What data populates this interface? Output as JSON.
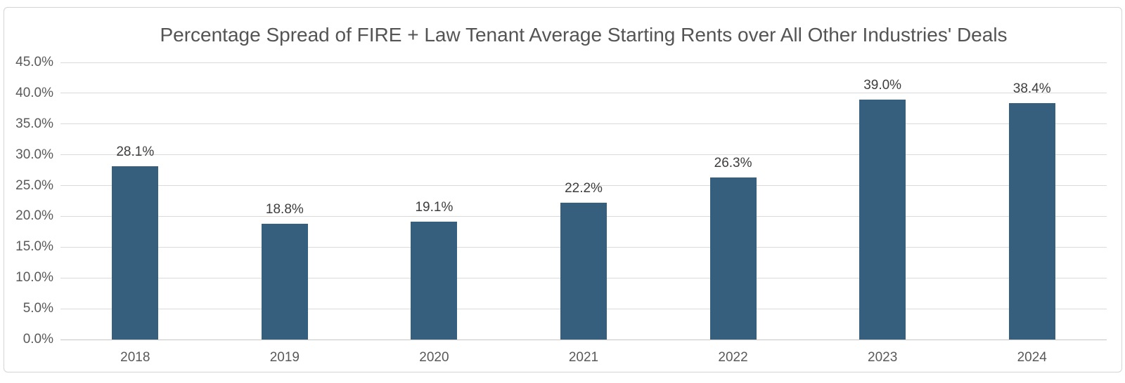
{
  "chart_data": {
    "type": "bar",
    "title": "Percentage Spread of FIRE + Law Tenant Average Starting Rents over All Other Industries' Deals",
    "categories": [
      "2018",
      "2019",
      "2020",
      "2021",
      "2022",
      "2023",
      "2024"
    ],
    "values": [
      28.1,
      18.8,
      19.1,
      22.2,
      26.3,
      39.0,
      38.4
    ],
    "data_labels": [
      "28.1%",
      "18.8%",
      "19.1%",
      "22.2%",
      "26.3%",
      "39.0%",
      "38.4%"
    ],
    "yticks": [
      0,
      5,
      10,
      15,
      20,
      25,
      30,
      35,
      40,
      45
    ],
    "ytick_labels": [
      "0.0%",
      "5.0%",
      "10.0%",
      "15.0%",
      "20.0%",
      "25.0%",
      "30.0%",
      "35.0%",
      "40.0%",
      "45.0%"
    ],
    "ylim": [
      0,
      45
    ],
    "xlabel": "",
    "ylabel": "",
    "grid": true,
    "legend": false,
    "colors": {
      "bar": "#365F7E",
      "gridline": "#dadada",
      "axis_line": "#c6c6c6",
      "title": "#545454",
      "tick_label": "#595959",
      "data_label": "#3d3d3d",
      "card_border": "#d4d4d4",
      "background": "#ffffff"
    }
  }
}
